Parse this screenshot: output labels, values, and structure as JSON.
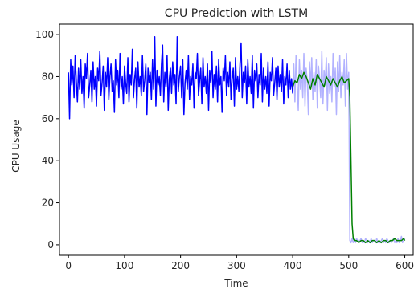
{
  "chart_data": {
    "type": "line",
    "title": "CPU Prediction with LSTM",
    "xlabel": "Time",
    "ylabel": "CPU Usage",
    "xlim": [
      -16,
      615
    ],
    "ylim": [
      -5,
      105
    ],
    "xticks": [
      0,
      100,
      200,
      300,
      400,
      500,
      600
    ],
    "yticks": [
      0,
      20,
      40,
      60,
      80,
      100
    ],
    "grid": false,
    "legend": null,
    "series": [
      {
        "color": "#0000ff",
        "width": 1.5,
        "opacity": 1,
        "x": [
          0,
          2,
          4,
          6,
          8,
          10,
          12,
          14,
          16,
          18,
          20,
          22,
          24,
          26,
          28,
          30,
          32,
          34,
          36,
          38,
          40,
          42,
          44,
          46,
          48,
          50,
          52,
          54,
          56,
          58,
          60,
          62,
          64,
          66,
          68,
          70,
          72,
          74,
          76,
          78,
          80,
          82,
          84,
          86,
          88,
          90,
          92,
          94,
          96,
          98,
          100,
          102,
          104,
          106,
          108,
          110,
          112,
          114,
          116,
          118,
          120,
          122,
          124,
          126,
          128,
          130,
          132,
          134,
          136,
          138,
          140,
          142,
          144,
          146,
          148,
          150,
          152,
          154,
          156,
          158,
          160,
          162,
          164,
          166,
          168,
          170,
          172,
          174,
          176,
          178,
          180,
          182,
          184,
          186,
          188,
          190,
          192,
          194,
          196,
          198,
          200,
          202,
          204,
          206,
          208,
          210,
          212,
          214,
          216,
          218,
          220,
          222,
          224,
          226,
          228,
          230,
          232,
          234,
          236,
          238,
          240,
          242,
          244,
          246,
          248,
          250,
          252,
          254,
          256,
          258,
          260,
          262,
          264,
          266,
          268,
          270,
          272,
          274,
          276,
          278,
          280,
          282,
          284,
          286,
          288,
          290,
          292,
          294,
          296,
          298,
          300,
          302,
          304,
          306,
          308,
          310,
          312,
          314,
          316,
          318,
          320,
          322,
          324,
          326,
          328,
          330,
          332,
          334,
          336,
          338,
          340,
          342,
          344,
          346,
          348,
          350,
          352,
          354,
          356,
          358,
          360,
          362,
          364,
          366,
          368,
          370,
          372,
          374,
          376,
          378,
          380,
          382,
          384,
          386,
          388,
          390,
          392,
          394,
          396,
          398,
          400
        ],
        "y": [
          82,
          60,
          88,
          76,
          85,
          70,
          90,
          78,
          68,
          84,
          74,
          88,
          72,
          80,
          65,
          86,
          79,
          91,
          70,
          76,
          83,
          68,
          87,
          74,
          80,
          66,
          84,
          78,
          92,
          71,
          77,
          85,
          64,
          82,
          75,
          89,
          69,
          80,
          86,
          73,
          78,
          63,
          88,
          76,
          83,
          70,
          91,
          74,
          80,
          67,
          85,
          77,
          72,
          89,
          68,
          81,
          76,
          93,
          70,
          79,
          84,
          65,
          87,
          75,
          80,
          71,
          90,
          73,
          78,
          86,
          62,
          84,
          77,
          82,
          69,
          88,
          74,
          99,
          66,
          83,
          76,
          80,
          71,
          86,
          95,
          68,
          82,
          75,
          90,
          64,
          79,
          84,
          72,
          87,
          76,
          81,
          67,
          99,
          73,
          80,
          85,
          70,
          88,
          62,
          77,
          83,
          74,
          90,
          69,
          80,
          76,
          86,
          65,
          82,
          79,
          91,
          71,
          78,
          84,
          67,
          89,
          75,
          80,
          72,
          86,
          64,
          83,
          77,
          92,
          70,
          81,
          74,
          85,
          68,
          88,
          76,
          80,
          63,
          84,
          78,
          90,
          71,
          82,
          75,
          87,
          69,
          79,
          84,
          66,
          89,
          74,
          80,
          73,
          86,
          96,
          70,
          82,
          77,
          85,
          67,
          88,
          75,
          80,
          72,
          90,
          65,
          83,
          78,
          86,
          70,
          81,
          76,
          91,
          68,
          84,
          74,
          80,
          72,
          87,
          66,
          82,
          78,
          89,
          71,
          77,
          84,
          69,
          85,
          75,
          81,
          73,
          88,
          67,
          80,
          76,
          86,
          70,
          83,
          74,
          79,
          72
        ]
      },
      {
        "color": "#0000ff",
        "width": 1.5,
        "opacity": 0.3,
        "x": [
          400,
          402,
          404,
          406,
          408,
          410,
          412,
          414,
          416,
          418,
          420,
          422,
          424,
          426,
          428,
          430,
          432,
          434,
          436,
          438,
          440,
          442,
          444,
          446,
          448,
          450,
          452,
          454,
          456,
          458,
          460,
          462,
          464,
          466,
          468,
          470,
          472,
          474,
          476,
          478,
          480,
          482,
          484,
          486,
          488,
          490,
          492,
          494,
          496,
          498,
          500,
          502,
          504,
          506,
          508,
          510,
          512,
          514,
          516,
          518,
          520,
          522,
          524,
          526,
          528,
          530,
          532,
          534,
          536,
          538,
          540,
          542,
          544,
          546,
          548,
          550,
          552,
          554,
          556,
          558,
          560,
          562,
          564,
          566,
          568,
          570,
          572,
          574,
          576,
          578,
          580,
          582,
          584,
          586,
          588,
          590,
          592,
          594,
          596,
          598,
          600
        ],
        "y": [
          72,
          86,
          68,
          90,
          77,
          64,
          88,
          74,
          83,
          70,
          91,
          66,
          84,
          78,
          62,
          87,
          75,
          89,
          69,
          82,
          73,
          88,
          65,
          85,
          79,
          70,
          92,
          67,
          83,
          76,
          89,
          64,
          86,
          72,
          80,
          68,
          91,
          75,
          84,
          62,
          87,
          73,
          90,
          70,
          82,
          76,
          88,
          66,
          91,
          74,
          82,
          2,
          1,
          3,
          1,
          2,
          1,
          3,
          2,
          1,
          2,
          3,
          1,
          2,
          1,
          3,
          2,
          1,
          2,
          1,
          3,
          1,
          2,
          2,
          1,
          3,
          1,
          2,
          1,
          2,
          3,
          1,
          2,
          1,
          3,
          2,
          1,
          2,
          1,
          2,
          3,
          1,
          2,
          1,
          3,
          1,
          2,
          4,
          1,
          2,
          3
        ]
      },
      {
        "color": "#008000",
        "width": 1.5,
        "opacity": 1,
        "x": [
          400,
          404,
          408,
          412,
          416,
          420,
          424,
          428,
          432,
          436,
          440,
          444,
          448,
          452,
          456,
          460,
          464,
          468,
          472,
          476,
          480,
          484,
          488,
          492,
          496,
          500,
          502,
          504,
          506,
          508,
          510,
          514,
          518,
          522,
          526,
          530,
          534,
          538,
          542,
          546,
          550,
          554,
          558,
          562,
          566,
          570,
          574,
          578,
          582,
          586,
          590,
          594,
          598,
          600
        ],
        "y": [
          75,
          78,
          77,
          81,
          79,
          82,
          80,
          77,
          74,
          79,
          76,
          81,
          79,
          77,
          75,
          80,
          78,
          76,
          79,
          77,
          75,
          78,
          80,
          77,
          78,
          79,
          70,
          40,
          10,
          3,
          2,
          2,
          1,
          2,
          2,
          1,
          2,
          1,
          2,
          2,
          1,
          2,
          1,
          2,
          2,
          1,
          2,
          2,
          3,
          2,
          2,
          2,
          3,
          2
        ]
      }
    ]
  }
}
